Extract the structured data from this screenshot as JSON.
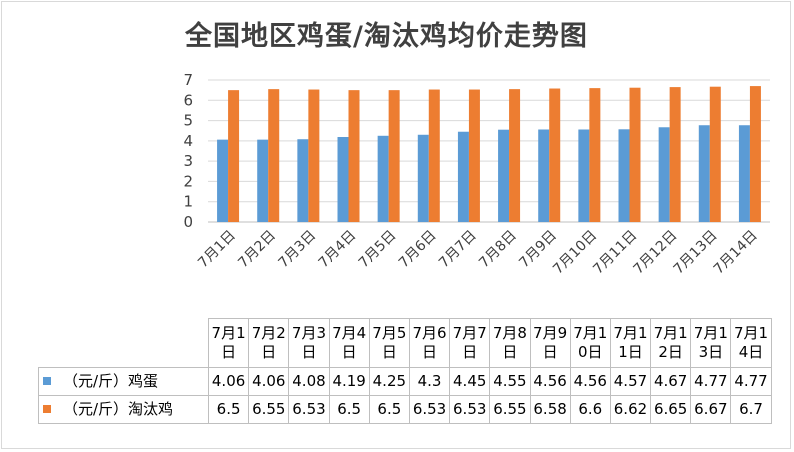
{
  "chart_data": {
    "type": "bar",
    "title": "全国地区鸡蛋/淘汰鸡均价走势图",
    "categories": [
      "7月1日",
      "7月2日",
      "7月3日",
      "7月4日",
      "7月5日",
      "7月6日",
      "7月7日",
      "7月8日",
      "7月9日",
      "7月10日",
      "7月11日",
      "7月12日",
      "7月13日",
      "7月14日"
    ],
    "series": [
      {
        "name": "（元/斤）鸡蛋",
        "color": "#5b9bd5",
        "values": [
          4.06,
          4.06,
          4.08,
          4.19,
          4.25,
          4.3,
          4.45,
          4.55,
          4.56,
          4.56,
          4.57,
          4.67,
          4.77,
          4.77
        ]
      },
      {
        "name": "（元/斤）淘汰鸡",
        "color": "#ed7d31",
        "values": [
          6.5,
          6.55,
          6.53,
          6.5,
          6.5,
          6.53,
          6.53,
          6.55,
          6.58,
          6.6,
          6.62,
          6.65,
          6.67,
          6.7
        ]
      }
    ],
    "yticks": [
      "0",
      "1",
      "2",
      "3",
      "4",
      "5",
      "6",
      "7"
    ],
    "ylim": [
      0,
      7
    ],
    "grid": true,
    "legend": "data-table"
  }
}
